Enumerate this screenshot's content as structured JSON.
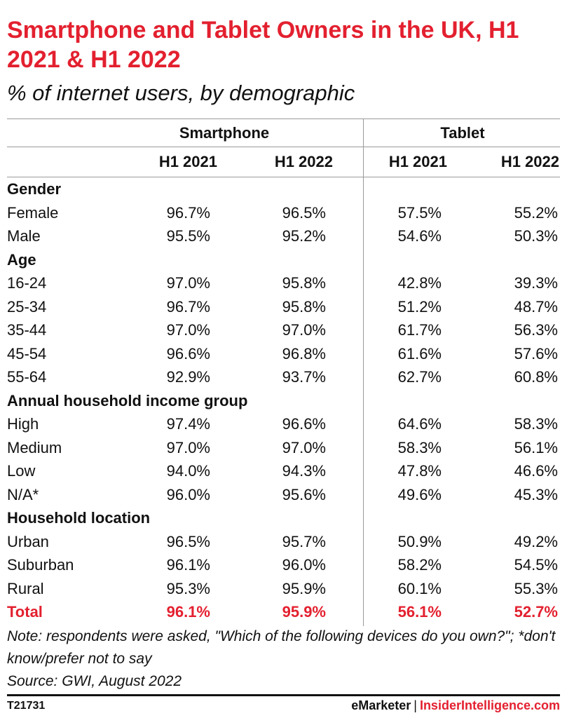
{
  "title": "Smartphone and Tablet Owners in the UK, H1 2021 & H1 2022",
  "subtitle": "% of internet users, by demographic",
  "groups": [
    "Smartphone",
    "Tablet"
  ],
  "columns": [
    "H1 2021",
    "H1 2022",
    "H1 2021",
    "H1 2022"
  ],
  "note": "Note: respondents were asked, \"Which of the following devices do you own?\"; *don't know/prefer not to say",
  "source": "Source: GWI, August 2022",
  "footer": {
    "id": "T21731",
    "brand1": "eMarketer",
    "separator": "|",
    "brand2": "InsiderIntelligence.com"
  },
  "colors": {
    "accent": "#e3202f",
    "text": "#111111",
    "rule": "#9a9a9a"
  },
  "chart_data": {
    "type": "table",
    "title": "Smartphone and Tablet Owners in the UK, H1 2021 & H1 2022",
    "subtitle": "% of internet users, by demographic",
    "column_groups": [
      {
        "name": "Smartphone",
        "columns": [
          "H1 2021",
          "H1 2022"
        ]
      },
      {
        "name": "Tablet",
        "columns": [
          "H1 2021",
          "H1 2022"
        ]
      }
    ],
    "rows": [
      {
        "kind": "section",
        "label": "Gender"
      },
      {
        "kind": "data",
        "label": "Female",
        "values": [
          "96.7%",
          "96.5%",
          "57.5%",
          "55.2%"
        ]
      },
      {
        "kind": "data",
        "label": "Male",
        "values": [
          "95.5%",
          "95.2%",
          "54.6%",
          "50.3%"
        ]
      },
      {
        "kind": "section",
        "label": "Age"
      },
      {
        "kind": "data",
        "label": "16-24",
        "values": [
          "97.0%",
          "95.8%",
          "42.8%",
          "39.3%"
        ]
      },
      {
        "kind": "data",
        "label": "25-34",
        "values": [
          "96.7%",
          "95.8%",
          "51.2%",
          "48.7%"
        ]
      },
      {
        "kind": "data",
        "label": "35-44",
        "values": [
          "97.0%",
          "97.0%",
          "61.7%",
          "56.3%"
        ]
      },
      {
        "kind": "data",
        "label": "45-54",
        "values": [
          "96.6%",
          "96.8%",
          "61.6%",
          "57.6%"
        ]
      },
      {
        "kind": "data",
        "label": "55-64",
        "values": [
          "92.9%",
          "93.7%",
          "62.7%",
          "60.8%"
        ]
      },
      {
        "kind": "section",
        "label": "Annual household income group"
      },
      {
        "kind": "data",
        "label": "High",
        "values": [
          "97.4%",
          "96.6%",
          "64.6%",
          "58.3%"
        ]
      },
      {
        "kind": "data",
        "label": "Medium",
        "values": [
          "97.0%",
          "97.0%",
          "58.3%",
          "56.1%"
        ]
      },
      {
        "kind": "data",
        "label": "Low",
        "values": [
          "94.0%",
          "94.3%",
          "47.8%",
          "46.6%"
        ]
      },
      {
        "kind": "data",
        "label": "N/A*",
        "values": [
          "96.0%",
          "95.6%",
          "49.6%",
          "45.3%"
        ]
      },
      {
        "kind": "section",
        "label": "Household location"
      },
      {
        "kind": "data",
        "label": "Urban",
        "values": [
          "96.5%",
          "95.7%",
          "50.9%",
          "49.2%"
        ]
      },
      {
        "kind": "data",
        "label": "Suburban",
        "values": [
          "96.1%",
          "96.0%",
          "58.2%",
          "54.5%"
        ]
      },
      {
        "kind": "data",
        "label": "Rural",
        "values": [
          "95.3%",
          "95.9%",
          "60.1%",
          "55.3%"
        ]
      },
      {
        "kind": "total",
        "label": "Total",
        "values": [
          "96.1%",
          "95.9%",
          "56.1%",
          "52.7%"
        ]
      }
    ]
  }
}
